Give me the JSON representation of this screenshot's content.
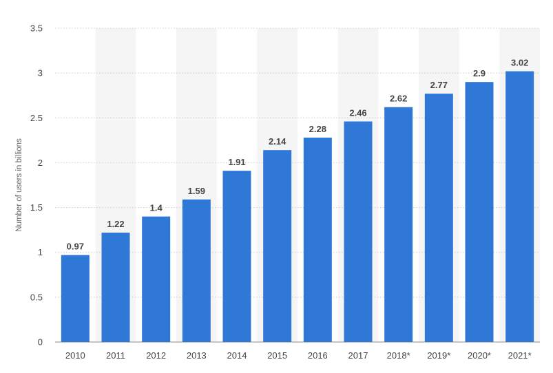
{
  "chart_data": {
    "type": "bar",
    "title": "",
    "xlabel": "",
    "ylabel": "Number of users in billions",
    "categories": [
      "2010",
      "2011",
      "2012",
      "2013",
      "2014",
      "2015",
      "2016",
      "2017",
      "2018*",
      "2019*",
      "2020*",
      "2021*"
    ],
    "values": [
      0.97,
      1.22,
      1.4,
      1.59,
      1.91,
      2.14,
      2.28,
      2.46,
      2.62,
      2.77,
      2.9,
      3.02
    ],
    "value_labels": [
      "0.97",
      "1.22",
      "1.4",
      "1.59",
      "1.91",
      "2.14",
      "2.28",
      "2.46",
      "2.62",
      "2.77",
      "2.9",
      "3.02"
    ],
    "ylim": [
      0,
      3.5
    ],
    "yticks": [
      0,
      0.5,
      1,
      1.5,
      2,
      2.5,
      3,
      3.5
    ],
    "ytick_labels": [
      "0",
      "0.5",
      "1",
      "1.5",
      "2",
      "2.5",
      "3",
      "3.5"
    ],
    "grid": true,
    "grid_style": "dotted",
    "alternating_column_shading": true,
    "colors": {
      "bar": "#2f78d8",
      "band": "#f5f5f5",
      "grid": "#c8c8c8",
      "text": "#444444"
    }
  }
}
